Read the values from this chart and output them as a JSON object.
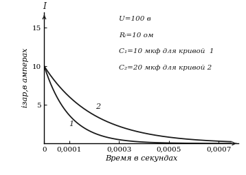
{
  "title": "",
  "xlabel": "Время в секундах",
  "y_arrow_label": "I",
  "xlim": [
    0,
    0.00078
  ],
  "ylim": [
    0,
    17
  ],
  "xticks": [
    0,
    0.0001,
    0.0003,
    0.0005,
    0.0007
  ],
  "xticklabels": [
    "0",
    "0,0001",
    "0,0003",
    "0,0005",
    "0,0007"
  ],
  "yticks": [
    5,
    10,
    15
  ],
  "yticklabels": [
    "5",
    "10",
    "15"
  ],
  "U": 100,
  "R": 10,
  "C1": 1e-05,
  "C2": 2e-05,
  "I0": 10,
  "annotation_lines": [
    "U=100 в",
    "Rₗ=10 ом",
    "C₁=10 мкф для кривой  1",
    "C₂=20 мкф для кривой 2"
  ],
  "curve1_label": "1",
  "curve2_label": "2",
  "bg_color": "#ffffff",
  "line_color": "#1a1a1a",
  "fontsize_tick": 7.5,
  "fontsize_label": 8,
  "fontsize_annot": 7.5,
  "ylabel_text": "iзар,в амперах"
}
